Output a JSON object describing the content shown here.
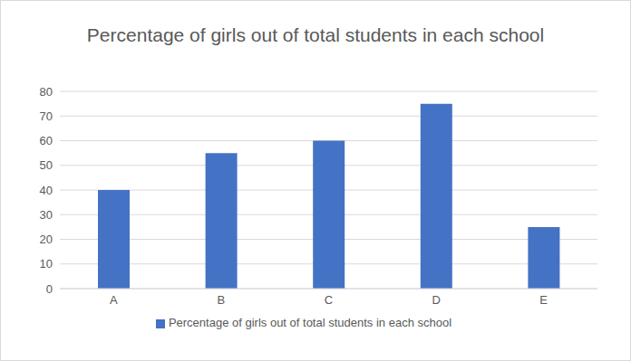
{
  "chart_data": {
    "type": "bar",
    "title": "Percentage of girls out of total students in each school",
    "categories": [
      "A",
      "B",
      "C",
      "D",
      "E"
    ],
    "series": [
      {
        "name": "Percentage of girls out of total students in each school",
        "color": "#4472c4",
        "values": [
          40,
          55,
          60,
          75,
          25
        ]
      }
    ],
    "ylim": [
      0,
      80
    ],
    "yticks": [
      0,
      10,
      20,
      30,
      40,
      50,
      60,
      70,
      80
    ],
    "grid": true,
    "legend": "bottom"
  }
}
